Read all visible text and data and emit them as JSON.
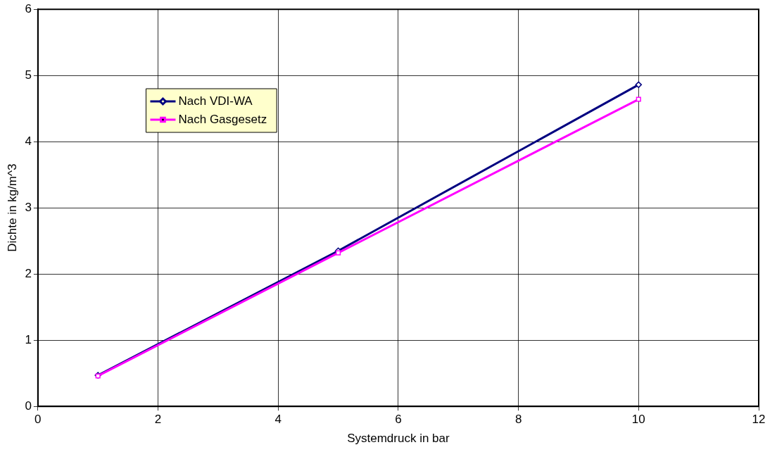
{
  "chart_data": {
    "type": "line",
    "xlabel": "Systemdruck in bar",
    "ylabel": "Dichte in kg/m^3",
    "x": [
      1,
      5,
      10
    ],
    "series": [
      {
        "name": "Nach VDI-WA",
        "color": "#000080",
        "values": [
          0.47,
          2.35,
          4.86
        ],
        "marker": "diamond"
      },
      {
        "name": "Nach Gasgesetz",
        "color": "#ff00ff",
        "values": [
          0.46,
          2.32,
          4.64
        ],
        "marker": "square"
      }
    ],
    "xlim": [
      0,
      12
    ],
    "xticks": [
      0,
      2,
      4,
      6,
      8,
      10,
      12
    ],
    "ylim": [
      0,
      6
    ],
    "yticks": [
      0,
      1,
      2,
      3,
      4,
      5,
      6
    ],
    "grid": true,
    "legend": "top left",
    "line_style": "solid"
  }
}
